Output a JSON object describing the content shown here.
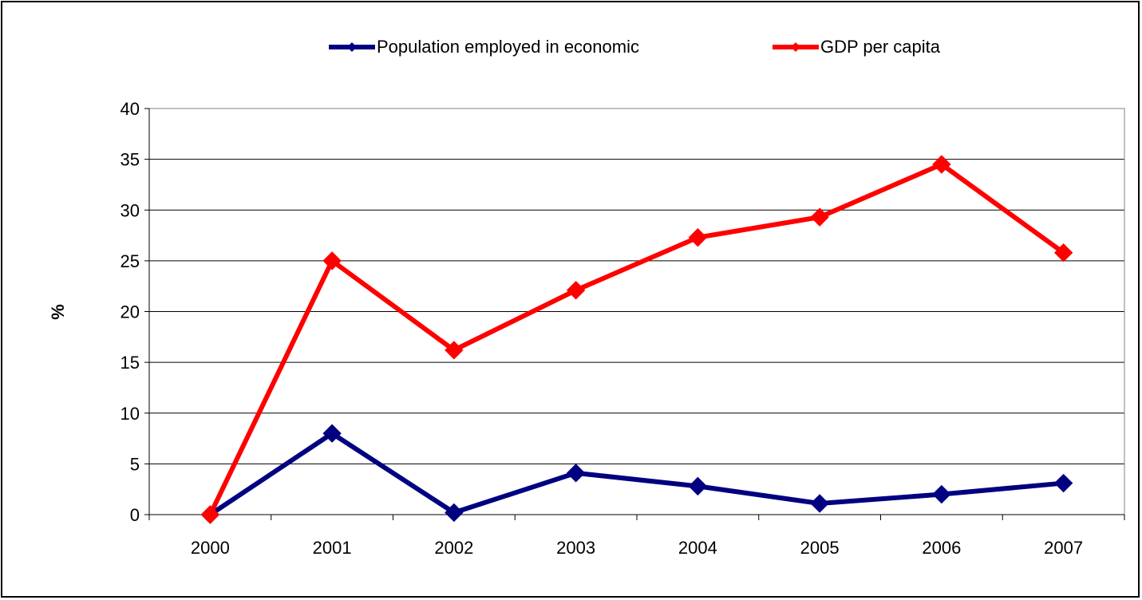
{
  "chart_data": {
    "type": "line",
    "title": "",
    "xlabel": "",
    "ylabel": "%",
    "categories": [
      "2000",
      "2001",
      "2002",
      "2003",
      "2004",
      "2005",
      "2006",
      "2007"
    ],
    "ylim": [
      0,
      40
    ],
    "yticks": [
      0,
      5,
      10,
      15,
      20,
      25,
      30,
      35,
      40
    ],
    "yticks_labels": [
      "0",
      "5",
      "10",
      "15",
      "20",
      "25",
      "30",
      "35",
      "40"
    ],
    "grid": "horizontal",
    "legend_position": "top",
    "series": [
      {
        "name": "Population employed in economic",
        "color": "#000080",
        "marker": "diamond",
        "values": [
          0,
          8.0,
          0.2,
          4.1,
          2.8,
          1.1,
          2.0,
          3.1
        ]
      },
      {
        "name": "GDP per capita",
        "color": "#ff0000",
        "marker": "diamond",
        "values": [
          0,
          25.0,
          16.2,
          22.1,
          27.3,
          29.3,
          34.5,
          25.8
        ]
      }
    ]
  }
}
